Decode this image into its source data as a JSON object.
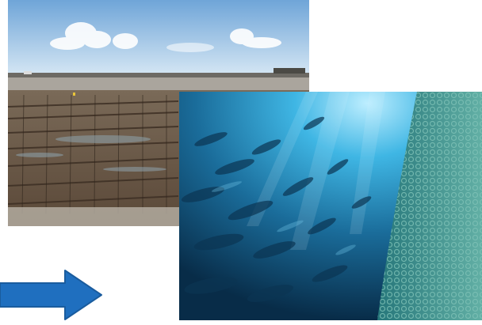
{
  "scene": {
    "coastal_photo": {
      "subject": "oyster-farm-tidal-flat-icon"
    },
    "underwater_photo": {
      "subject": "fish-school-and-net-pen-icon"
    },
    "arrow": {
      "direction": "right",
      "color": "#1f6fbf"
    }
  },
  "colors": {
    "sky_top": "#7fb0dc",
    "sky_bottom": "#cfe3f4",
    "sea": "#a7a29a",
    "mudflat": "#6b5a47",
    "water_deep": "#0a3a5c",
    "water_light": "#46bfe6",
    "net": "#4fa7a8",
    "arrow": "#1f6fbf"
  }
}
